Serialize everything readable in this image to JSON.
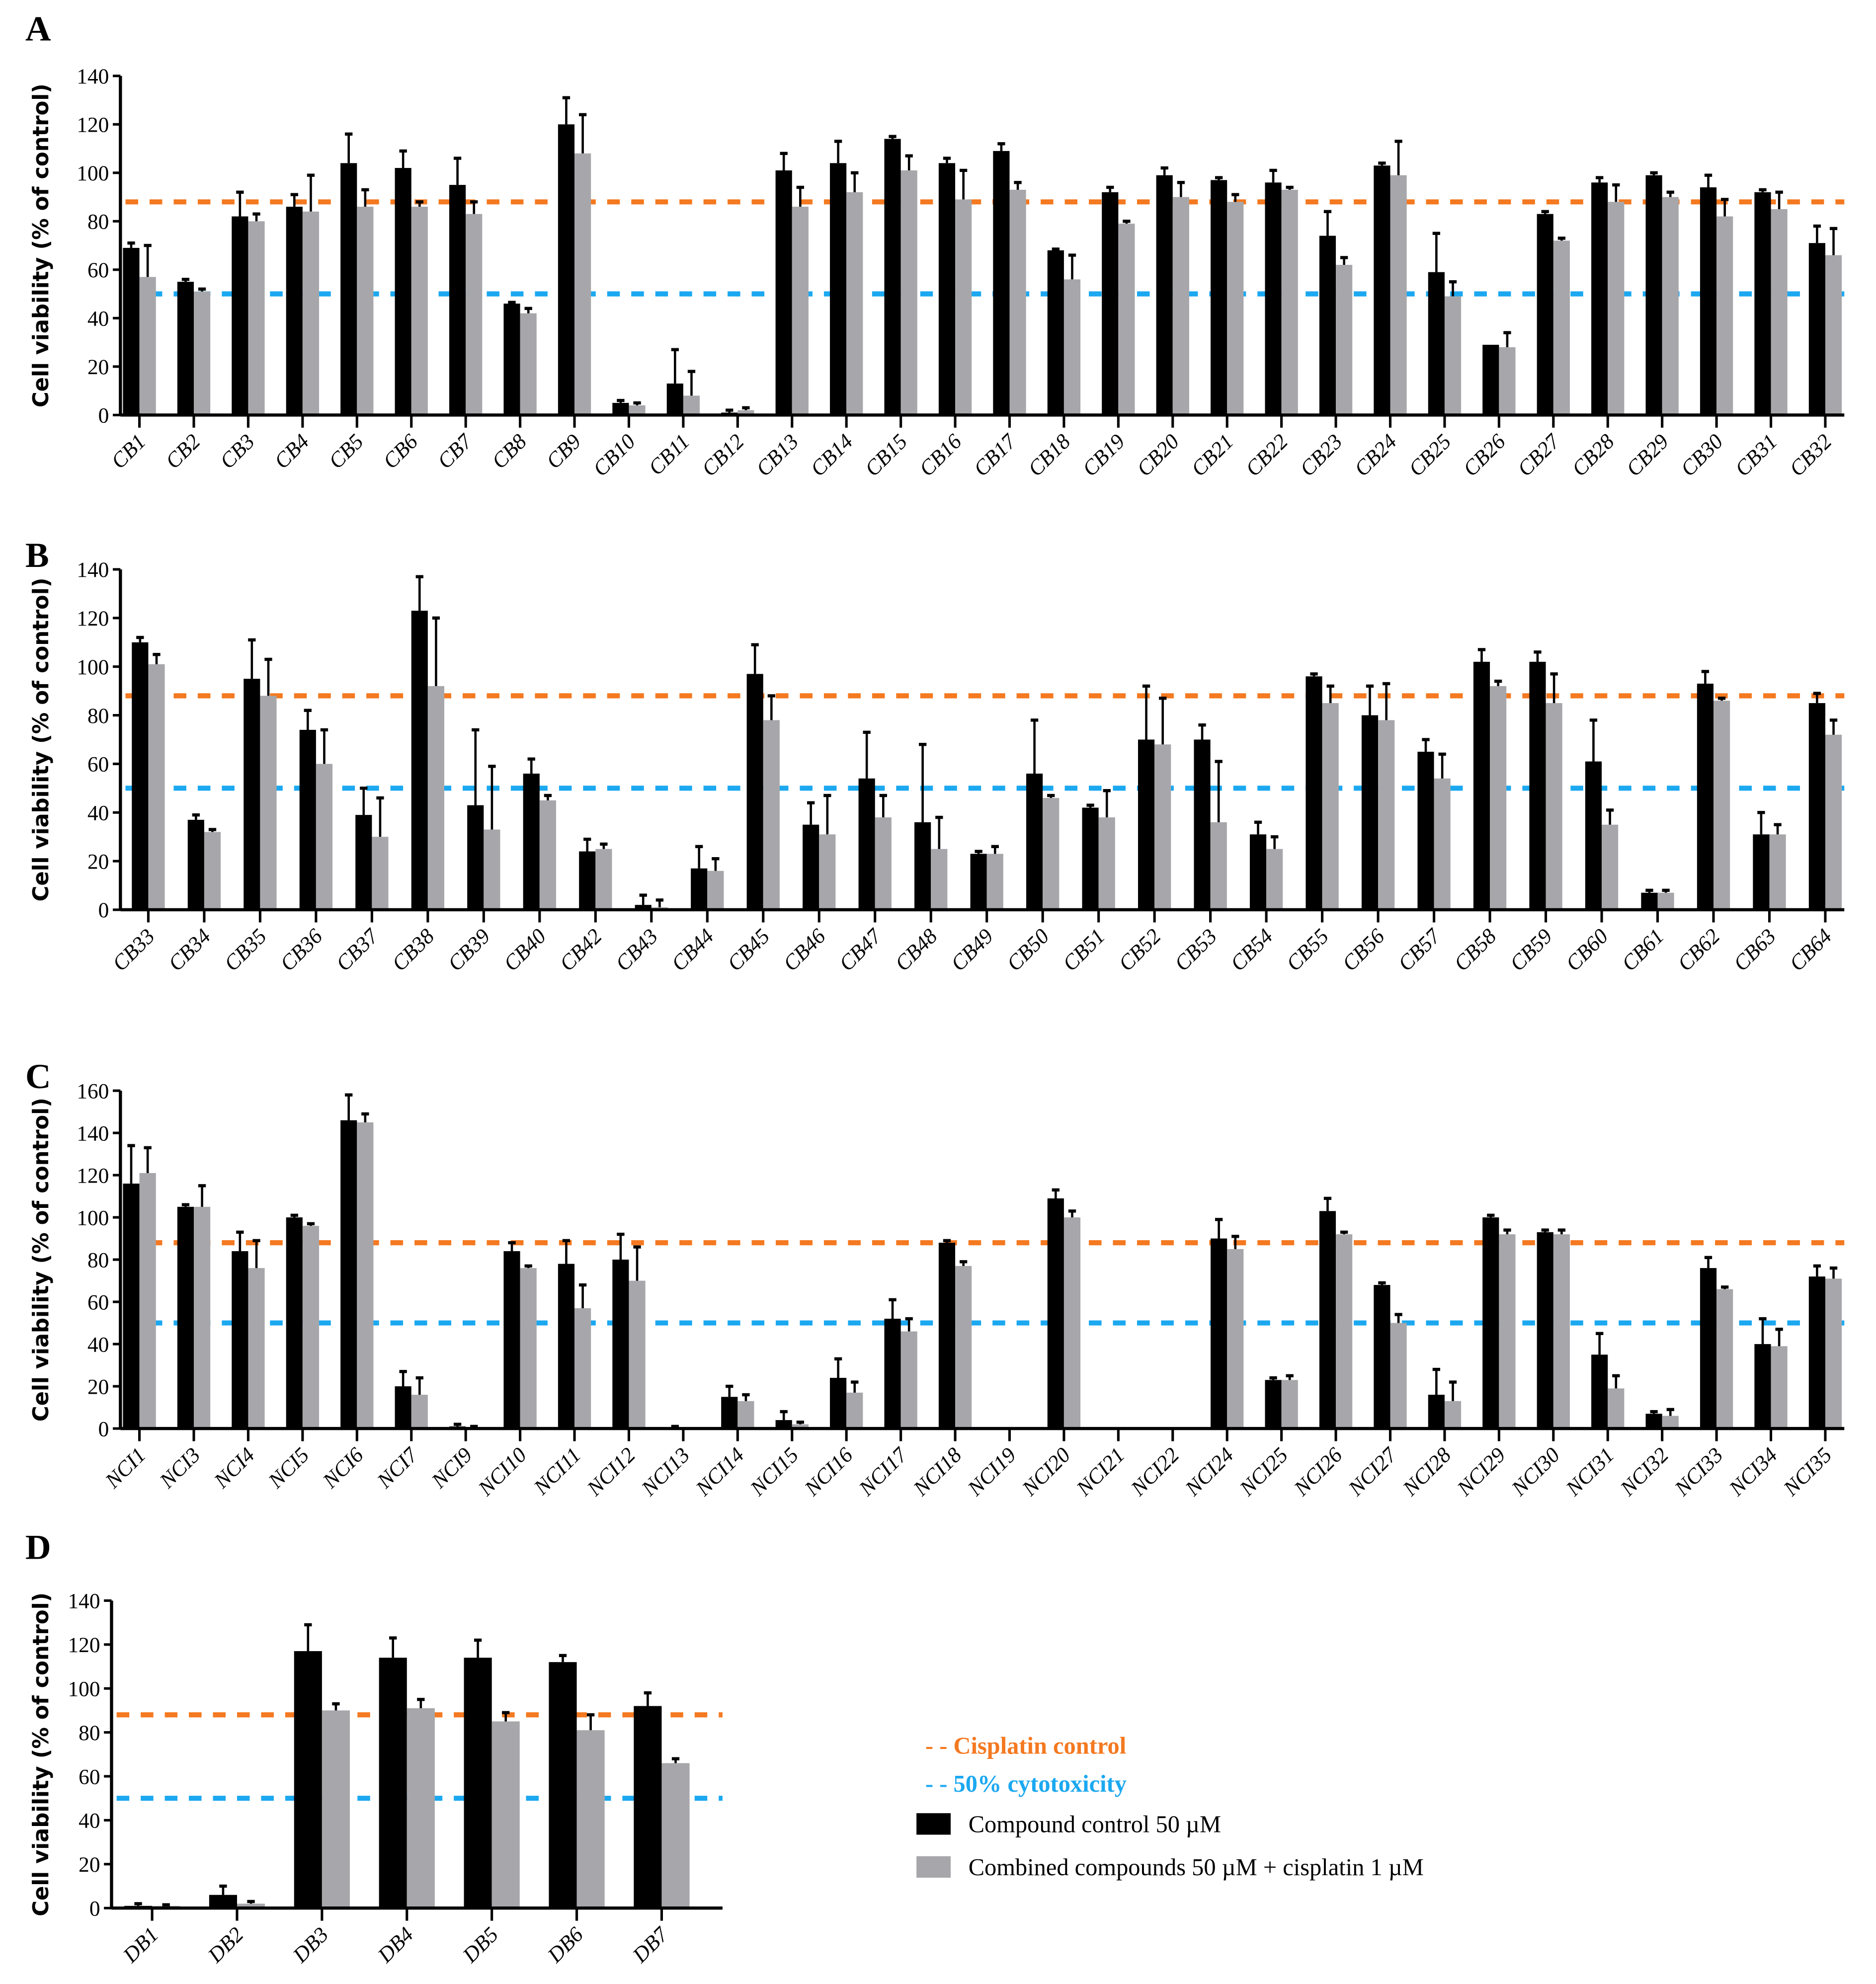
{
  "legend": {
    "cisplatin": "- - Cisplatin control",
    "cytotox": "- - 50% cytotoxicity",
    "compound": "Compound control 50 µM",
    "combined": "Combined compounds 50 µM + cisplatin 1 µM"
  },
  "colors": {
    "compound": "#000000",
    "combined": "#a7a7ab",
    "cisplatin": "#f47920",
    "cytotox": "#1ba8f0"
  },
  "chart_data": [
    {
      "type": "bar",
      "panel": "A",
      "ylabel": "Cell viability (% of control)",
      "ylim": [
        0,
        140
      ],
      "ystep": 20,
      "reference_lines": {
        "cisplatin": 88,
        "cytotox": 50
      },
      "categories": [
        "CB1",
        "CB2",
        "CB3",
        "CB4",
        "CB5",
        "CB6",
        "CB7",
        "CB8",
        "CB9",
        "CB10",
        "CB11",
        "CB12",
        "CB13",
        "CB14",
        "CB15",
        "CB16",
        "CB17",
        "CB18",
        "CB19",
        "CB20",
        "CB21",
        "CB22",
        "CB23",
        "CB24",
        "CB25",
        "CB26",
        "CB27",
        "CB28",
        "CB29",
        "CB30",
        "CB31",
        "CB32"
      ],
      "series": [
        {
          "name": "Compound control 50 µM",
          "values": [
            69,
            55,
            82,
            86,
            104,
            102,
            95,
            46,
            120,
            5,
            13,
            1,
            101,
            104,
            114,
            104,
            109,
            68,
            92,
            99,
            97,
            96,
            74,
            103,
            59,
            29,
            83,
            96,
            99,
            94,
            92,
            71
          ],
          "errors": [
            2,
            1,
            10,
            5,
            12,
            7,
            11,
            0.5,
            11,
            1,
            14,
            1,
            7,
            9,
            1,
            2,
            3,
            0.5,
            2,
            3,
            1,
            5,
            10,
            1,
            16,
            0,
            1,
            2,
            1,
            5,
            1,
            7
          ]
        },
        {
          "name": "Combined compounds 50 µM + cisplatin 1 µM",
          "values": [
            57,
            51,
            80,
            84,
            86,
            86,
            83,
            42,
            108,
            4,
            8,
            2,
            86,
            92,
            101,
            89,
            93,
            56,
            79,
            90,
            88,
            93,
            62,
            99,
            49,
            28,
            72,
            88,
            90,
            82,
            85,
            66
          ],
          "errors": [
            13,
            1,
            3,
            15,
            7,
            2,
            5,
            2,
            16,
            1,
            10,
            1,
            8,
            8,
            6,
            12,
            3,
            10,
            1,
            6,
            3,
            1,
            3,
            14,
            6,
            6,
            1,
            7,
            2,
            7,
            7,
            11
          ]
        }
      ]
    },
    {
      "type": "bar",
      "panel": "B",
      "ylabel": "Cell viability (% of control)",
      "ylim": [
        0,
        140
      ],
      "ystep": 20,
      "reference_lines": {
        "cisplatin": 88,
        "cytotox": 50
      },
      "categories": [
        "CB33",
        "CB34",
        "CB35",
        "CB36",
        "CB37",
        "CB38",
        "CB39",
        "CB40",
        "CB42",
        "CB43",
        "CB44",
        "CB45",
        "CB46",
        "CB47",
        "CB48",
        "CB49",
        "CB50",
        "CB51",
        "CB52",
        "CB53",
        "CB54",
        "CB55",
        "CB56",
        "CB57",
        "CB58",
        "CB59",
        "CB60",
        "CB61",
        "CB62",
        "CB63",
        "CB64"
      ],
      "series": [
        {
          "name": "Compound control 50 µM",
          "values": [
            110,
            37,
            95,
            74,
            39,
            123,
            43,
            56,
            24,
            2,
            17,
            97,
            35,
            54,
            36,
            23,
            56,
            42,
            70,
            70,
            31,
            96,
            80,
            65,
            102,
            102,
            61,
            7,
            93,
            31,
            85
          ],
          "errors": [
            2,
            2,
            16,
            8,
            11,
            14,
            31,
            6,
            5,
            4,
            9,
            12,
            9,
            19,
            32,
            1,
            22,
            1,
            22,
            6,
            5,
            1,
            12,
            5,
            5,
            4,
            17,
            1,
            5,
            9,
            4
          ]
        },
        {
          "name": "Combined compounds 50 µM + cisplatin 1 µM",
          "values": [
            101,
            32,
            88,
            60,
            30,
            92,
            33,
            45,
            25,
            1,
            16,
            78,
            31,
            38,
            25,
            23,
            46,
            38,
            68,
            36,
            25,
            85,
            78,
            54,
            92,
            85,
            35,
            7,
            86,
            31,
            72
          ],
          "errors": [
            4,
            1,
            15,
            14,
            16,
            28,
            26,
            2,
            2,
            3,
            5,
            10,
            16,
            9,
            13,
            3,
            1,
            11,
            19,
            25,
            5,
            7,
            15,
            10,
            2,
            12,
            6,
            1,
            1,
            4,
            6
          ]
        }
      ]
    },
    {
      "type": "bar",
      "panel": "C",
      "ylabel": "Cell viability (% of control)",
      "ylim": [
        0,
        160
      ],
      "ystep": 20,
      "reference_lines": {
        "cisplatin": 88,
        "cytotox": 50
      },
      "categories": [
        "NCI1",
        "NCI3",
        "NCI4",
        "NCI5",
        "NCI6",
        "NCI7",
        "NCI9",
        "NCI10",
        "NCI11",
        "NCI12",
        "NCI13",
        "NCI14",
        "NCI15",
        "NCI16",
        "NCI17",
        "NCI18",
        "NCI19",
        "NCI20",
        "NCI21",
        "NCI22",
        "NCI24",
        "NCI25",
        "NCI26",
        "NCI27",
        "NCI28",
        "NCI29",
        "NCI30",
        "NCI31",
        "NCI32",
        "NCI33",
        "NCI34",
        "NCI35"
      ],
      "series": [
        {
          "name": "Compound control 50 µM",
          "values": [
            116,
            105,
            84,
            100,
            146,
            20,
            1,
            84,
            78,
            80,
            0.5,
            15,
            4,
            24,
            52,
            88,
            0,
            109,
            0,
            0,
            90,
            23,
            103,
            68,
            16,
            100,
            93,
            35,
            7,
            76,
            40,
            72
          ],
          "errors": [
            18,
            1,
            9,
            1,
            12,
            7,
            1,
            4,
            11,
            12,
            0.5,
            5,
            4,
            9,
            9,
            1,
            0,
            4,
            0,
            0,
            9,
            1,
            6,
            1,
            12,
            1,
            1,
            10,
            1,
            5,
            12,
            5
          ]
        },
        {
          "name": "Combined compounds 50 µM + cisplatin 1 µM",
          "values": [
            121,
            105,
            76,
            96,
            145,
            16,
            0.5,
            76,
            57,
            70,
            0,
            13,
            2,
            17,
            46,
            77,
            0,
            100,
            0,
            0,
            85,
            23,
            92,
            50,
            13,
            92,
            92,
            19,
            6,
            66,
            39,
            71
          ],
          "errors": [
            12,
            10,
            13,
            1,
            4,
            8,
            0.5,
            1,
            11,
            16,
            0,
            3,
            1,
            5,
            6,
            2,
            0,
            3,
            0,
            0,
            6,
            2,
            1,
            4,
            9,
            2,
            2,
            6,
            3,
            1,
            8,
            5
          ]
        }
      ]
    },
    {
      "type": "bar",
      "panel": "D",
      "ylabel": "Cell viability (% of control)",
      "ylim": [
        0,
        140
      ],
      "ystep": 20,
      "reference_lines": {
        "cisplatin": 88,
        "cytotox": 50
      },
      "categories": [
        "DB1",
        "DB2",
        "DB3",
        "DB4",
        "DB5",
        "DB6",
        "DB7"
      ],
      "series": [
        {
          "name": "Compound control 50 µM",
          "values": [
            1,
            6,
            117,
            114,
            114,
            112,
            92
          ],
          "errors": [
            1,
            4,
            12,
            9,
            8,
            3,
            6
          ]
        },
        {
          "name": "Combined compounds 50 µM + cisplatin 1 µM",
          "values": [
            1,
            2,
            90,
            91,
            85,
            81,
            66
          ],
          "errors": [
            0.5,
            1,
            3,
            4,
            4,
            7,
            2
          ]
        }
      ]
    }
  ]
}
